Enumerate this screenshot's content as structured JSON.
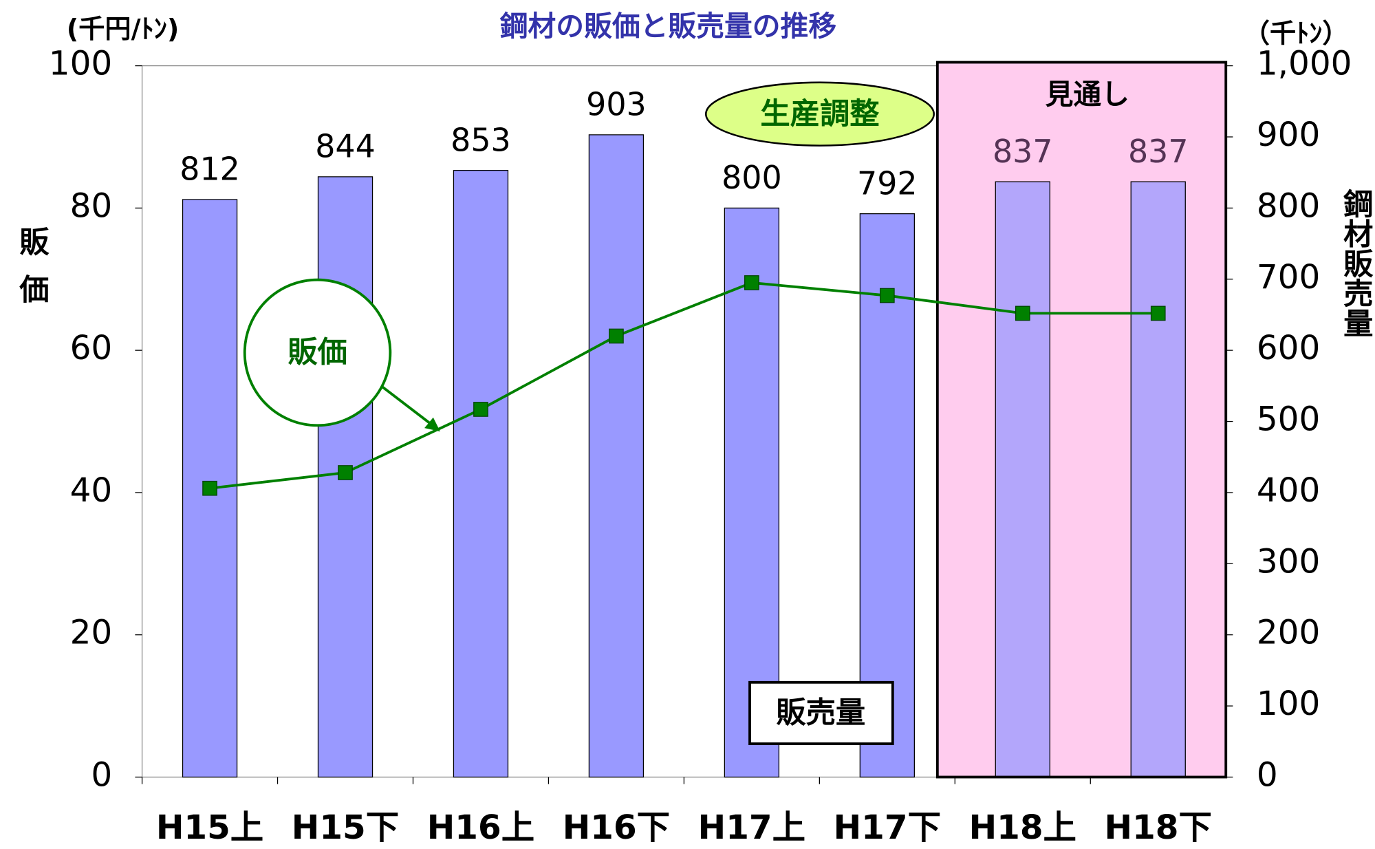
{
  "chart_data": {
    "type": "bar_line",
    "title": "鋼材の販価と販売量の推移",
    "y_unit": "(千円/ﾄﾝ)",
    "y2_unit": "（千ﾄﾝ）",
    "y_label": "販価",
    "y2_label": "鋼材販売量",
    "categories": [
      "H15上",
      "H15下",
      "H16上",
      "H16下",
      "H17上",
      "H17下",
      "H18上",
      "H18下"
    ],
    "series": [
      {
        "name": "販売量",
        "type": "bar",
        "axis": "y2",
        "color": "#9999ff",
        "values": [
          812,
          844,
          853,
          903,
          800,
          792,
          837,
          837
        ]
      },
      {
        "name": "販価",
        "type": "line",
        "axis": "y",
        "color": "#008000",
        "values": [
          40.6,
          42.8,
          51.7,
          62.0,
          69.5,
          67.7,
          65.2,
          65.2
        ]
      }
    ],
    "ylim": [
      0,
      100
    ],
    "yticks": [
      0,
      20,
      40,
      60,
      80,
      100
    ],
    "y2lim": [
      0,
      1000
    ],
    "y2ticks": [
      0,
      100,
      200,
      300,
      400,
      500,
      600,
      700,
      800,
      900,
      {
        "value": 1000,
        "label": "1,000"
      }
    ],
    "annotations": [
      "生産調整",
      "見通し"
    ],
    "forecast_color": "#ffccee"
  }
}
